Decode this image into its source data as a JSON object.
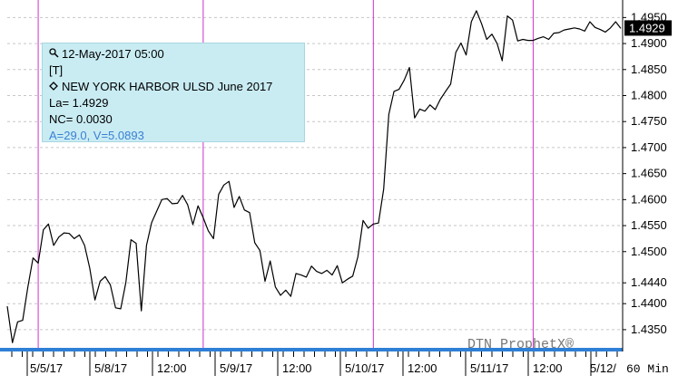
{
  "colors": {
    "line": "#000000",
    "vline": "#cc33cc",
    "grid": "#c6c6c6",
    "baseline": "#2f7fd6",
    "tooltip_bg": "#c9ecf3",
    "tooltip_accent": "#3b7fd4",
    "last_bg": "#000000"
  },
  "tooltip": {
    "date": "12-May-2017 05:00",
    "tag": "[T]",
    "symbol": "NEW YORK HARBOR ULSD June 2017",
    "last": "La= 1.4929",
    "net_change": "NC= 0.0030",
    "extra": "A=29.0, V=5.0893",
    "icon": "magnifier-icon",
    "symbol_icon": "diamond-icon"
  },
  "interval_label": "60 Min",
  "watermark": "DTN ProphetX®",
  "last_value_label": "1.4929",
  "chart_data": {
    "type": "line",
    "y_ticks": [
      "1.4950",
      "1.4900",
      "1.4850",
      "1.4800",
      "1.4750",
      "1.4700",
      "1.4650",
      "1.4600",
      "1.4550",
      "1.4500",
      "1.4440",
      "1.4400",
      "1.4350"
    ],
    "ylim": [
      1.4315,
      1.4975
    ],
    "x_labels": [
      "5/5/17",
      "5/8/17",
      "12:00",
      "5/9/17",
      "12:00",
      "5/10/17",
      "12:00",
      "5/11/17",
      "12:00",
      "5/12/"
    ],
    "session_lines_at_index": [
      6,
      38,
      71,
      102,
      134
    ],
    "grid": true,
    "last": 1.4929,
    "series": [
      {
        "values": [
          1.4395,
          1.4325,
          1.4365,
          1.4368,
          1.4432,
          1.4488,
          1.4478,
          1.4542,
          1.4553,
          1.4512,
          1.4528,
          1.4536,
          1.4535,
          1.4525,
          1.4532,
          1.4512,
          1.4468,
          1.4407,
          1.4443,
          1.4452,
          1.4436,
          1.4392,
          1.439,
          1.4441,
          1.4523,
          1.4516,
          1.4386,
          1.4512,
          1.4556,
          1.4578,
          1.46,
          1.4602,
          1.4592,
          1.4593,
          1.4608,
          1.459,
          1.4552,
          1.4588,
          1.4565,
          1.454,
          1.4525,
          1.461,
          1.4628,
          1.4635,
          1.4585,
          1.4606,
          1.458,
          1.4575,
          1.4517,
          1.4502,
          1.4443,
          1.4482,
          1.4432,
          1.4416,
          1.4426,
          1.4414,
          1.4458,
          1.4455,
          1.4451,
          1.4472,
          1.4462,
          1.4458,
          1.4464,
          1.4455,
          1.4473,
          1.444,
          1.4447,
          1.4453,
          1.449,
          1.456,
          1.4545,
          1.4553,
          1.4555,
          1.462,
          1.4764,
          1.4808,
          1.4812,
          1.483,
          1.4854,
          1.4757,
          1.4774,
          1.477,
          1.4782,
          1.4773,
          1.4793,
          1.4808,
          1.4822,
          1.4883,
          1.4901,
          1.4878,
          1.4942,
          1.4963,
          1.4938,
          1.4908,
          1.4918,
          1.49,
          1.4867,
          1.4953,
          1.4945,
          1.4905,
          1.4908,
          1.4906,
          1.4906,
          1.491,
          1.4913,
          1.4908,
          1.492,
          1.4921,
          1.4926,
          1.4928,
          1.493,
          1.4928,
          1.4924,
          1.4942,
          1.4931,
          1.4927,
          1.4922,
          1.493,
          1.4942,
          1.4929
        ]
      }
    ]
  }
}
